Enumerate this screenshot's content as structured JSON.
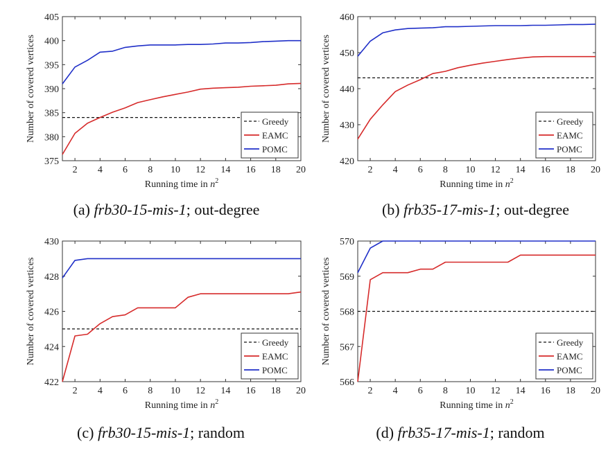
{
  "chart_data": [
    {
      "type": "line",
      "caption": {
        "prefix": "(a) ",
        "instance": "frb30-15-mis-1",
        "suffix": "; out-degree"
      },
      "xlabel": "Running time in",
      "xlabel_var": "n",
      "xlabel_exp": "2",
      "ylabel": "Number of covered vertices",
      "xlim": [
        1,
        20
      ],
      "ylim": [
        375,
        405
      ],
      "xticks": [
        2,
        4,
        6,
        8,
        10,
        12,
        14,
        16,
        18,
        20
      ],
      "yticks": [
        375,
        380,
        385,
        390,
        395,
        400,
        405
      ],
      "legend_position": "bottom-right",
      "series": [
        {
          "name": "Greedy",
          "style": "dashed",
          "color": "#111111",
          "x": [
            1,
            20
          ],
          "y": [
            384,
            384
          ]
        },
        {
          "name": "EAMC",
          "style": "solid",
          "color": "#d62a2a",
          "x": [
            1,
            2,
            3,
            4,
            5,
            6,
            7,
            8,
            9,
            10,
            11,
            12,
            13,
            14,
            15,
            16,
            17,
            18,
            19,
            20
          ],
          "y": [
            376.3,
            380.7,
            382.8,
            384.0,
            385.1,
            386.0,
            387.1,
            387.7,
            388.3,
            388.8,
            389.3,
            389.9,
            390.1,
            390.2,
            390.3,
            390.5,
            390.6,
            390.7,
            391.0,
            391.1
          ]
        },
        {
          "name": "POMC",
          "style": "solid",
          "color": "#1f2fc8",
          "x": [
            1,
            2,
            3,
            4,
            5,
            6,
            7,
            8,
            9,
            10,
            11,
            12,
            13,
            14,
            15,
            16,
            17,
            18,
            19,
            20
          ],
          "y": [
            391.0,
            394.5,
            395.9,
            397.6,
            397.8,
            398.6,
            398.9,
            399.1,
            399.1,
            399.1,
            399.2,
            399.2,
            399.3,
            399.5,
            399.5,
            399.6,
            399.8,
            399.9,
            400.0,
            400.0
          ]
        }
      ]
    },
    {
      "type": "line",
      "caption": {
        "prefix": "(b) ",
        "instance": "frb35-17-mis-1",
        "suffix": "; out-degree"
      },
      "xlabel": "Running time in",
      "xlabel_var": "n",
      "xlabel_exp": "2",
      "ylabel": "Number of covered vertices",
      "xlim": [
        1,
        20
      ],
      "ylim": [
        420,
        460
      ],
      "xticks": [
        2,
        4,
        6,
        8,
        10,
        12,
        14,
        16,
        18,
        20
      ],
      "yticks": [
        420,
        430,
        440,
        450,
        460
      ],
      "legend_position": "bottom-right",
      "series": [
        {
          "name": "Greedy",
          "style": "dashed",
          "color": "#111111",
          "x": [
            1,
            20
          ],
          "y": [
            443,
            443
          ]
        },
        {
          "name": "EAMC",
          "style": "solid",
          "color": "#d62a2a",
          "x": [
            1,
            2,
            3,
            4,
            5,
            6,
            7,
            8,
            9,
            10,
            11,
            12,
            13,
            14,
            15,
            16,
            17,
            18,
            19,
            20
          ],
          "y": [
            426.0,
            431.5,
            435.5,
            439.2,
            441.0,
            442.5,
            444.2,
            444.8,
            445.8,
            446.5,
            447.1,
            447.6,
            448.1,
            448.5,
            448.8,
            448.9,
            448.9,
            448.9,
            448.9,
            448.9
          ]
        },
        {
          "name": "POMC",
          "style": "solid",
          "color": "#1f2fc8",
          "x": [
            1,
            2,
            3,
            4,
            5,
            6,
            7,
            8,
            9,
            10,
            11,
            12,
            13,
            14,
            15,
            16,
            17,
            18,
            19,
            20
          ],
          "y": [
            449.0,
            453.2,
            455.5,
            456.3,
            456.7,
            456.8,
            456.9,
            457.2,
            457.2,
            457.3,
            457.4,
            457.5,
            457.5,
            457.5,
            457.6,
            457.6,
            457.7,
            457.8,
            457.8,
            457.9
          ]
        }
      ]
    },
    {
      "type": "line",
      "caption": {
        "prefix": "(c) ",
        "instance": "frb30-15-mis-1",
        "suffix": "; random"
      },
      "xlabel": "Running time in",
      "xlabel_var": "n",
      "xlabel_exp": "2",
      "ylabel": "Number of covered vertices",
      "xlim": [
        1,
        20
      ],
      "ylim": [
        422,
        430
      ],
      "xticks": [
        2,
        4,
        6,
        8,
        10,
        12,
        14,
        16,
        18,
        20
      ],
      "yticks": [
        422,
        424,
        426,
        428,
        430
      ],
      "legend_position": "bottom-right",
      "series": [
        {
          "name": "Greedy",
          "style": "dashed",
          "color": "#111111",
          "x": [
            1,
            20
          ],
          "y": [
            425,
            425
          ]
        },
        {
          "name": "EAMC",
          "style": "solid",
          "color": "#d62a2a",
          "x": [
            1,
            2,
            3,
            4,
            5,
            6,
            7,
            8,
            9,
            10,
            11,
            12,
            13,
            14,
            15,
            16,
            17,
            18,
            19,
            20
          ],
          "y": [
            422.0,
            424.6,
            424.7,
            425.3,
            425.7,
            425.8,
            426.2,
            426.2,
            426.2,
            426.2,
            426.8,
            427.0,
            427.0,
            427.0,
            427.0,
            427.0,
            427.0,
            427.0,
            427.0,
            427.1
          ]
        },
        {
          "name": "POMC",
          "style": "solid",
          "color": "#1f2fc8",
          "x": [
            1,
            2,
            3,
            20
          ],
          "y": [
            427.9,
            428.9,
            429.0,
            429.0
          ]
        }
      ]
    },
    {
      "type": "line",
      "caption": {
        "prefix": "(d) ",
        "instance": "frb35-17-mis-1",
        "suffix": "; random"
      },
      "xlabel": "Running time in",
      "xlabel_var": "n",
      "xlabel_exp": "2",
      "ylabel": "Number of covered vertices",
      "xlim": [
        1,
        20
      ],
      "ylim": [
        566,
        570
      ],
      "xticks": [
        2,
        4,
        6,
        8,
        10,
        12,
        14,
        16,
        18,
        20
      ],
      "yticks": [
        566,
        567,
        568,
        569,
        570
      ],
      "legend_position": "bottom-right",
      "series": [
        {
          "name": "Greedy",
          "style": "dashed",
          "color": "#111111",
          "x": [
            1,
            20
          ],
          "y": [
            568,
            568
          ]
        },
        {
          "name": "EAMC",
          "style": "solid",
          "color": "#d62a2a",
          "x": [
            1,
            2,
            3,
            4,
            5,
            6,
            7,
            8,
            9,
            10,
            11,
            12,
            13,
            14,
            15,
            16,
            17,
            18,
            19,
            20
          ],
          "y": [
            566.0,
            568.9,
            569.1,
            569.1,
            569.1,
            569.2,
            569.2,
            569.4,
            569.4,
            569.4,
            569.4,
            569.4,
            569.4,
            569.6,
            569.6,
            569.6,
            569.6,
            569.6,
            569.6,
            569.6
          ]
        },
        {
          "name": "POMC",
          "style": "solid",
          "color": "#1f2fc8",
          "x": [
            1,
            2,
            3,
            20
          ],
          "y": [
            569.1,
            569.8,
            570.0,
            570.0
          ]
        }
      ]
    }
  ]
}
